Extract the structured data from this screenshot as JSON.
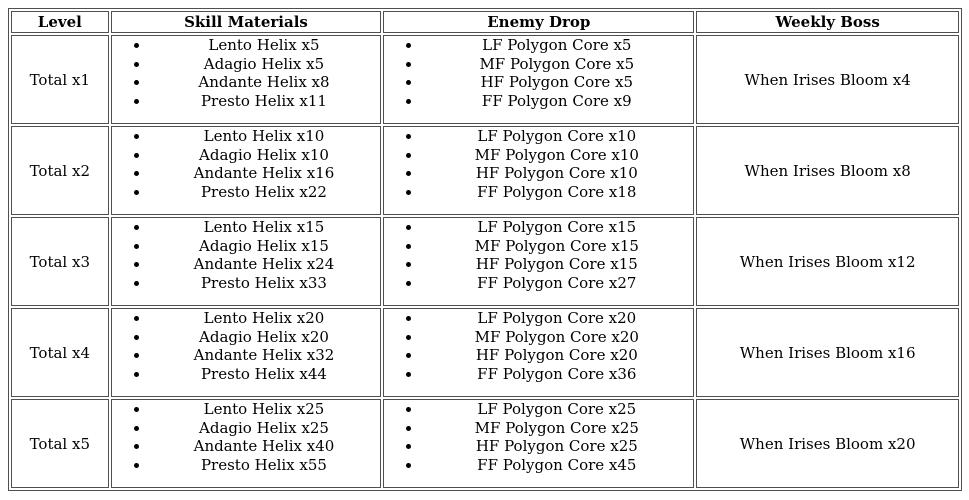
{
  "table": {
    "border_color": "#4f4f4f",
    "text_color": "#000000",
    "background_color": "#ffffff",
    "columns": [
      "Level",
      "Skill Materials",
      "Enemy Drop",
      "Weekly Boss"
    ],
    "rows": [
      {
        "level": "Total x1",
        "skill_materials": [
          "Lento Helix x5",
          "Adagio Helix x5",
          "Andante Helix x8",
          "Presto Helix x11"
        ],
        "enemy_drop": [
          "LF Polygon Core x5",
          "MF Polygon Core x5",
          "HF Polygon Core x5",
          "FF Polygon Core x9"
        ],
        "weekly_boss": "When Irises Bloom x4"
      },
      {
        "level": "Total x2",
        "skill_materials": [
          "Lento Helix x10",
          "Adagio Helix x10",
          "Andante Helix x16",
          "Presto Helix x22"
        ],
        "enemy_drop": [
          "LF Polygon Core x10",
          "MF Polygon Core x10",
          "HF Polygon Core x10",
          "FF Polygon Core x18"
        ],
        "weekly_boss": "When Irises Bloom x8"
      },
      {
        "level": "Total x3",
        "skill_materials": [
          "Lento Helix x15",
          "Adagio Helix x15",
          "Andante Helix x24",
          "Presto Helix x33"
        ],
        "enemy_drop": [
          "LF Polygon Core x15",
          "MF Polygon Core x15",
          "HF Polygon Core x15",
          "FF Polygon Core x27"
        ],
        "weekly_boss": "When Irises Bloom x12"
      },
      {
        "level": "Total x4",
        "skill_materials": [
          "Lento Helix x20",
          "Adagio Helix x20",
          "Andante Helix x32",
          "Presto Helix x44"
        ],
        "enemy_drop": [
          "LF Polygon Core x20",
          "MF Polygon Core x20",
          "HF Polygon Core x20",
          "FF Polygon Core x36"
        ],
        "weekly_boss": "When Irises Bloom x16"
      },
      {
        "level": "Total x5",
        "skill_materials": [
          "Lento Helix x25",
          "Adagio Helix x25",
          "Andante Helix x40",
          "Presto Helix x55"
        ],
        "enemy_drop": [
          "LF Polygon Core x25",
          "MF Polygon Core x25",
          "HF Polygon Core x25",
          "FF Polygon Core x45"
        ],
        "weekly_boss": "When Irises Bloom x20"
      }
    ]
  }
}
